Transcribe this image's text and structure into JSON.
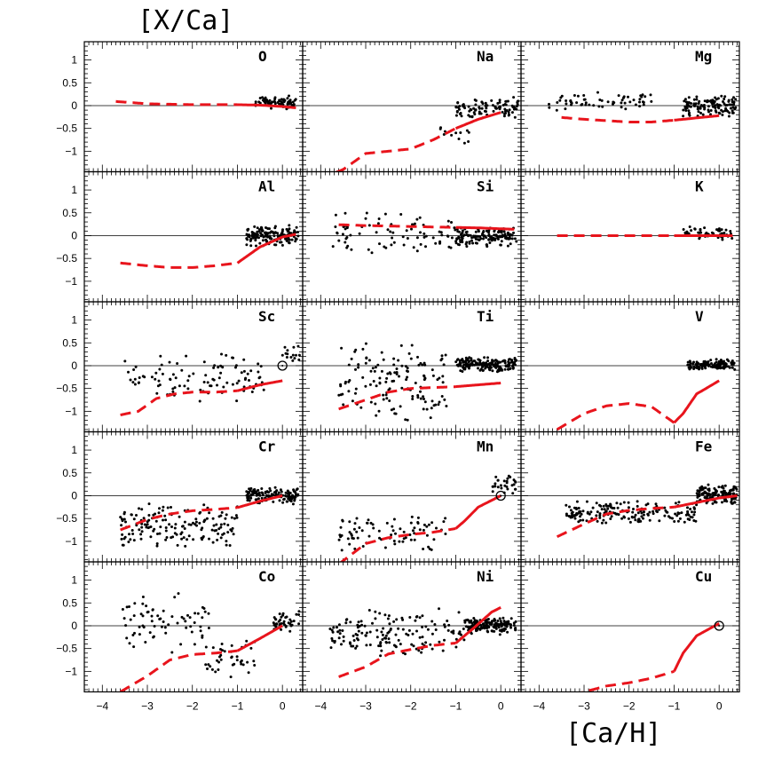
{
  "figure": {
    "ylabel": "[X/Ca]",
    "xlabel": "[Ca/H]"
  },
  "chart_data": {
    "type": "scatter",
    "layout": "5x3 panel grid, shared axes",
    "xlabel": "[Ca/H]",
    "ylabel": "[X/Ca]",
    "xlim": [
      -4.4,
      0.45
    ],
    "ylim": [
      -1.45,
      1.4
    ],
    "x_ticks": [
      -4,
      -3,
      -2,
      -1,
      0
    ],
    "y_ticks": [
      1,
      0.5,
      0,
      -0.5,
      -1
    ],
    "x_tick_labels": [
      "−4",
      "−3",
      "−2",
      "−1",
      "0"
    ],
    "y_tick_labels": [
      "1",
      "0.5",
      "0",
      "−0.5",
      "−1"
    ],
    "reference_line_y": 0,
    "series_styles": {
      "observed_stars": {
        "marker": "dot",
        "color": "#000000"
      },
      "model": {
        "style": "red line, dashed where [Ca/H] < -1",
        "color": "#e8141c"
      },
      "sun": {
        "marker": "open-circle",
        "color": "#000000"
      }
    },
    "panels": [
      {
        "element": "O",
        "clouds": [
          {
            "x0": -0.6,
            "x1": 0.3,
            "y0": -0.1,
            "y1": 0.25,
            "n": 70
          }
        ],
        "model_x": [
          -3.7,
          -3,
          -2,
          -1,
          -0.5,
          0,
          0.3
        ],
        "model_y": [
          0.09,
          0.04,
          0.02,
          0.02,
          0.01,
          -0.02,
          -0.05
        ]
      },
      {
        "element": "Na",
        "clouds": [
          {
            "x0": -1.6,
            "x1": -0.7,
            "y0": -0.9,
            "y1": -0.4,
            "n": 12
          },
          {
            "x0": -1.0,
            "x1": 0.4,
            "y0": -0.3,
            "y1": 0.2,
            "n": 100
          }
        ],
        "model_x": [
          -4,
          -3.5,
          -3,
          -2,
          -1.5,
          -1,
          -0.5,
          0
        ],
        "model_y": [
          -1.6,
          -1.4,
          -1.05,
          -0.95,
          -0.75,
          -0.5,
          -0.3,
          -0.15
        ]
      },
      {
        "element": "Mg",
        "clouds": [
          {
            "x0": -3.8,
            "x1": -1.5,
            "y0": -0.15,
            "y1": 0.3,
            "n": 60
          },
          {
            "x0": -0.8,
            "x1": 0.4,
            "y0": -0.25,
            "y1": 0.25,
            "n": 120
          }
        ],
        "model_x": [
          -3.5,
          -3,
          -2.5,
          -2,
          -1.5,
          -1,
          -0.5,
          0
        ],
        "model_y": [
          -0.26,
          -0.3,
          -0.33,
          -0.36,
          -0.36,
          -0.32,
          -0.27,
          -0.22
        ]
      },
      {
        "element": "Al",
        "clouds": [
          {
            "x0": -0.8,
            "x1": 0.35,
            "y0": -0.25,
            "y1": 0.25,
            "n": 150
          }
        ],
        "model_x": [
          -3.6,
          -3,
          -2.5,
          -2,
          -1.5,
          -1,
          -0.5,
          0,
          0.3
        ],
        "model_y": [
          -0.6,
          -0.66,
          -0.7,
          -0.7,
          -0.66,
          -0.6,
          -0.25,
          -0.03,
          0.03
        ]
      },
      {
        "element": "Si",
        "clouds": [
          {
            "x0": -3.8,
            "x1": -1.0,
            "y0": -0.45,
            "y1": 0.6,
            "n": 80
          },
          {
            "x0": -1.0,
            "x1": 0.35,
            "y0": -0.25,
            "y1": 0.2,
            "n": 150
          }
        ],
        "model_x": [
          -3.6,
          -3,
          -2,
          -1,
          -0.5,
          0,
          0.3
        ],
        "model_y": [
          0.24,
          0.22,
          0.2,
          0.18,
          0.17,
          0.15,
          0.14
        ]
      },
      {
        "element": "K",
        "clouds": [
          {
            "x0": -0.8,
            "x1": 0.3,
            "y0": -0.1,
            "y1": 0.2,
            "n": 50
          }
        ],
        "model_x": [
          -3.6,
          -3,
          -2,
          -1,
          -0.5,
          0,
          0.3
        ],
        "model_y": [
          0,
          0,
          0,
          0,
          0,
          0,
          0
        ]
      },
      {
        "element": "Sc",
        "clouds": [
          {
            "x0": -3.6,
            "x1": -0.4,
            "y0": -0.9,
            "y1": 0.3,
            "n": 100
          },
          {
            "x0": 0,
            "x1": 0.4,
            "y0": 0.05,
            "y1": 0.45,
            "n": 15
          }
        ],
        "model_x": [
          -3.6,
          -3.2,
          -2.8,
          -2.4,
          -2,
          -1.5,
          -1,
          -0.5,
          0
        ],
        "model_y": [
          -1.08,
          -1.0,
          -0.72,
          -0.62,
          -0.58,
          -0.58,
          -0.55,
          -0.42,
          -0.33
        ],
        "sun": [
          0,
          0
        ]
      },
      {
        "element": "Ti",
        "clouds": [
          {
            "x0": -3.6,
            "x1": -1.2,
            "y0": -1.3,
            "y1": 0.6,
            "n": 140
          },
          {
            "x0": -1.0,
            "x1": 0.35,
            "y0": -0.15,
            "y1": 0.2,
            "n": 180
          }
        ],
        "model_x": [
          -3.6,
          -3,
          -2.5,
          -2,
          -1.5,
          -1,
          -0.5,
          0
        ],
        "model_y": [
          -0.95,
          -0.75,
          -0.58,
          -0.5,
          -0.48,
          -0.46,
          -0.42,
          -0.38
        ]
      },
      {
        "element": "V",
        "clouds": [
          {
            "x0": -0.7,
            "x1": 0.35,
            "y0": -0.1,
            "y1": 0.15,
            "n": 120
          }
        ],
        "model_x": [
          -3.6,
          -3,
          -2.5,
          -2,
          -1.5,
          -1,
          -0.8,
          -0.5,
          0
        ],
        "model_y": [
          -1.4,
          -1.05,
          -0.88,
          -0.83,
          -0.9,
          -1.25,
          -1.05,
          -0.62,
          -0.33
        ]
      },
      {
        "element": "Cr",
        "clouds": [
          {
            "x0": -3.6,
            "x1": -1.0,
            "y0": -1.2,
            "y1": -0.1,
            "n": 160
          },
          {
            "x0": -0.8,
            "x1": 0.35,
            "y0": -0.2,
            "y1": 0.2,
            "n": 130
          }
        ],
        "model_x": [
          -3.6,
          -3,
          -2.5,
          -2,
          -1.5,
          -1,
          -0.5,
          0
        ],
        "model_y": [
          -0.75,
          -0.52,
          -0.4,
          -0.33,
          -0.3,
          -0.26,
          -0.12,
          0
        ]
      },
      {
        "element": "Mn",
        "clouds": [
          {
            "x0": -3.6,
            "x1": -1.2,
            "y0": -1.3,
            "y1": -0.3,
            "n": 80
          },
          {
            "x0": -0.2,
            "x1": 0.35,
            "y0": -0.05,
            "y1": 0.55,
            "n": 30
          }
        ],
        "model_x": [
          -3.6,
          -3,
          -2.5,
          -2,
          -1.5,
          -1,
          -0.8,
          -0.5,
          0
        ],
        "model_y": [
          -1.5,
          -1.05,
          -0.92,
          -0.85,
          -0.8,
          -0.72,
          -0.55,
          -0.25,
          0
        ],
        "sun": [
          0,
          0
        ]
      },
      {
        "element": "Fe",
        "clouds": [
          {
            "x0": -3.4,
            "x1": -0.5,
            "y0": -0.65,
            "y1": -0.1,
            "n": 180
          },
          {
            "x0": -0.5,
            "x1": 0.4,
            "y0": -0.2,
            "y1": 0.25,
            "n": 140
          }
        ],
        "model_x": [
          -3.6,
          -3,
          -2.5,
          -2,
          -1.5,
          -1,
          -0.5,
          0,
          0.4
        ],
        "model_y": [
          -0.9,
          -0.62,
          -0.4,
          -0.32,
          -0.28,
          -0.25,
          -0.15,
          -0.05,
          0
        ]
      },
      {
        "element": "Co",
        "clouds": [
          {
            "x0": -3.6,
            "x1": -1.6,
            "y0": -0.6,
            "y1": 0.75,
            "n": 70
          },
          {
            "x0": -1.8,
            "x1": -0.6,
            "y0": -1.2,
            "y1": -0.2,
            "n": 40
          },
          {
            "x0": -0.2,
            "x1": 0.4,
            "y0": -0.15,
            "y1": 0.4,
            "n": 40
          }
        ],
        "model_x": [
          -3.6,
          -3,
          -2.5,
          -2,
          -1.5,
          -1,
          -0.5,
          0
        ],
        "model_y": [
          -1.45,
          -1.1,
          -0.75,
          -0.63,
          -0.6,
          -0.55,
          -0.28,
          0
        ]
      },
      {
        "element": "Ni",
        "clouds": [
          {
            "x0": -3.8,
            "x1": -0.8,
            "y0": -0.75,
            "y1": 0.4,
            "n": 150
          },
          {
            "x0": -0.8,
            "x1": 0.35,
            "y0": -0.2,
            "y1": 0.2,
            "n": 160
          }
        ],
        "model_x": [
          -3.6,
          -3,
          -2.5,
          -2,
          -1.5,
          -1,
          -0.6,
          -0.2,
          0
        ],
        "model_y": [
          -1.12,
          -0.9,
          -0.62,
          -0.52,
          -0.43,
          -0.38,
          -0.05,
          0.3,
          0.4
        ]
      },
      {
        "element": "Cu",
        "clouds": [],
        "model_x": [
          -3.6,
          -3,
          -2.5,
          -2,
          -1.5,
          -1,
          -0.8,
          -0.5,
          0
        ],
        "model_y": [
          -1.65,
          -1.45,
          -1.32,
          -1.25,
          -1.15,
          -1.0,
          -0.6,
          -0.22,
          0.05
        ],
        "sun": [
          0,
          0
        ]
      }
    ]
  }
}
